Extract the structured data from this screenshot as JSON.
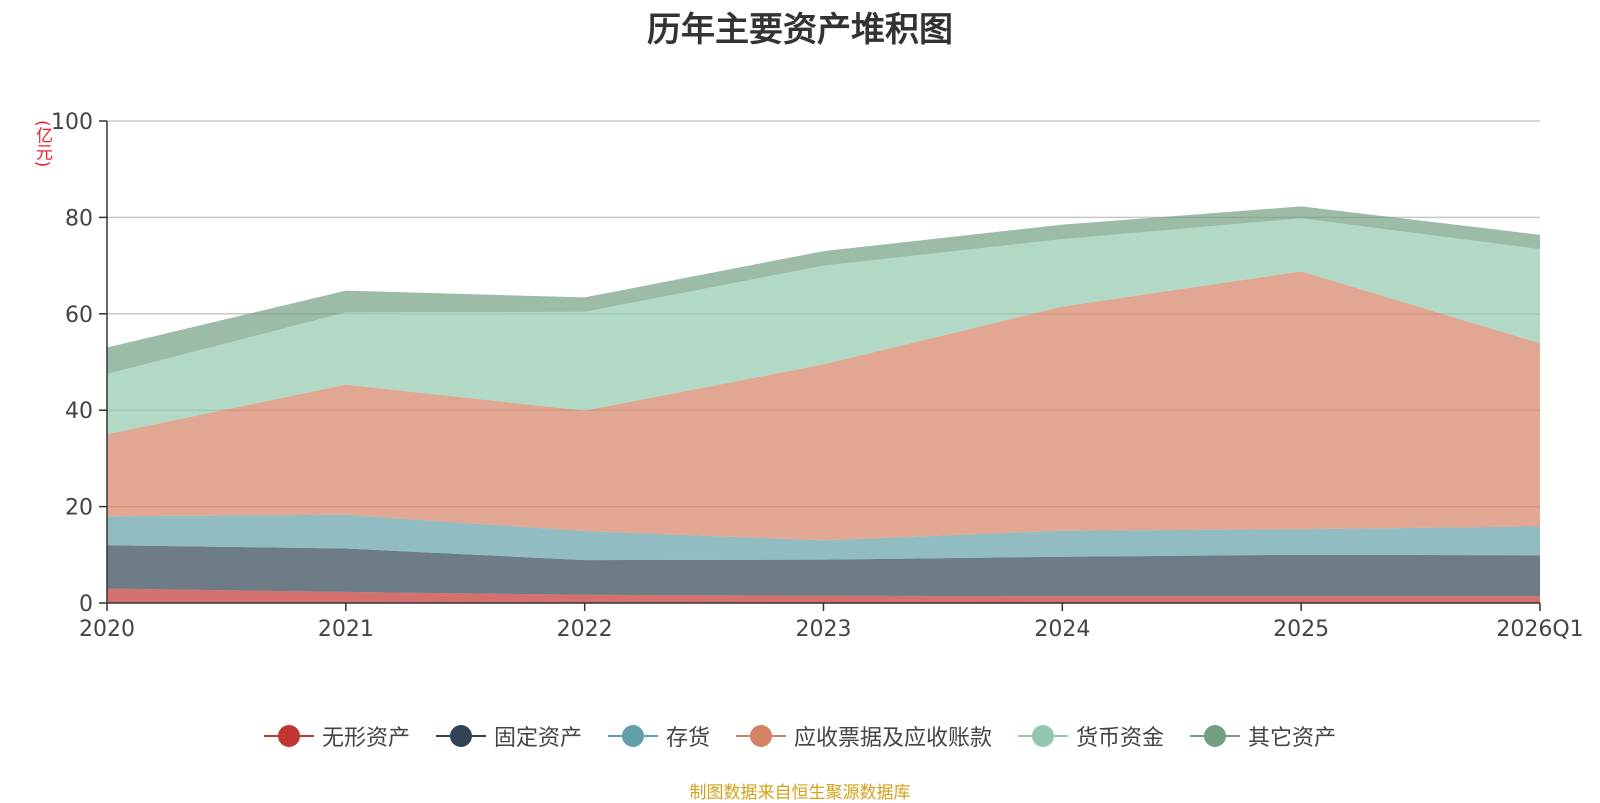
{
  "chart_data": {
    "type": "area",
    "stacked": true,
    "title": "历年主要资产堆积图",
    "unit": "(亿元)",
    "xlabel": "",
    "ylabel": "(亿元)",
    "categories": [
      "2020",
      "2021",
      "2022",
      "2023",
      "2024",
      "2025",
      "2026Q1"
    ],
    "ylim": [
      0,
      100
    ],
    "yticks": [
      0,
      20,
      40,
      60,
      80,
      100
    ],
    "series": [
      {
        "name": "无形资产",
        "color": "#c23531",
        "values": [
          3,
          2.3,
          1.7,
          1.5,
          1.4,
          1.4,
          1.4
        ]
      },
      {
        "name": "固定资产",
        "color": "#2f4554",
        "values": [
          9,
          9,
          7.2,
          7.5,
          8.2,
          8.6,
          8.5
        ]
      },
      {
        "name": "存货",
        "color": "#61a0a8",
        "values": [
          6,
          7,
          6,
          4,
          5.4,
          5.3,
          6
        ]
      },
      {
        "name": "应收票据及应收账款",
        "color": "#d48265",
        "values": [
          17,
          27,
          25,
          36.5,
          46.5,
          53.5,
          38
        ]
      },
      {
        "name": "货币资金",
        "color": "#91c7ae",
        "values": [
          12.5,
          15,
          20.5,
          20.5,
          14,
          11,
          19.5
        ]
      },
      {
        "name": "其它资产",
        "color": "#749f83",
        "values": [
          5.5,
          4.5,
          3,
          3,
          3,
          2.5,
          3
        ]
      }
    ],
    "legend_position": "bottom-center",
    "grid": true
  },
  "source_text": "制图数据来自恒生聚源数据库"
}
